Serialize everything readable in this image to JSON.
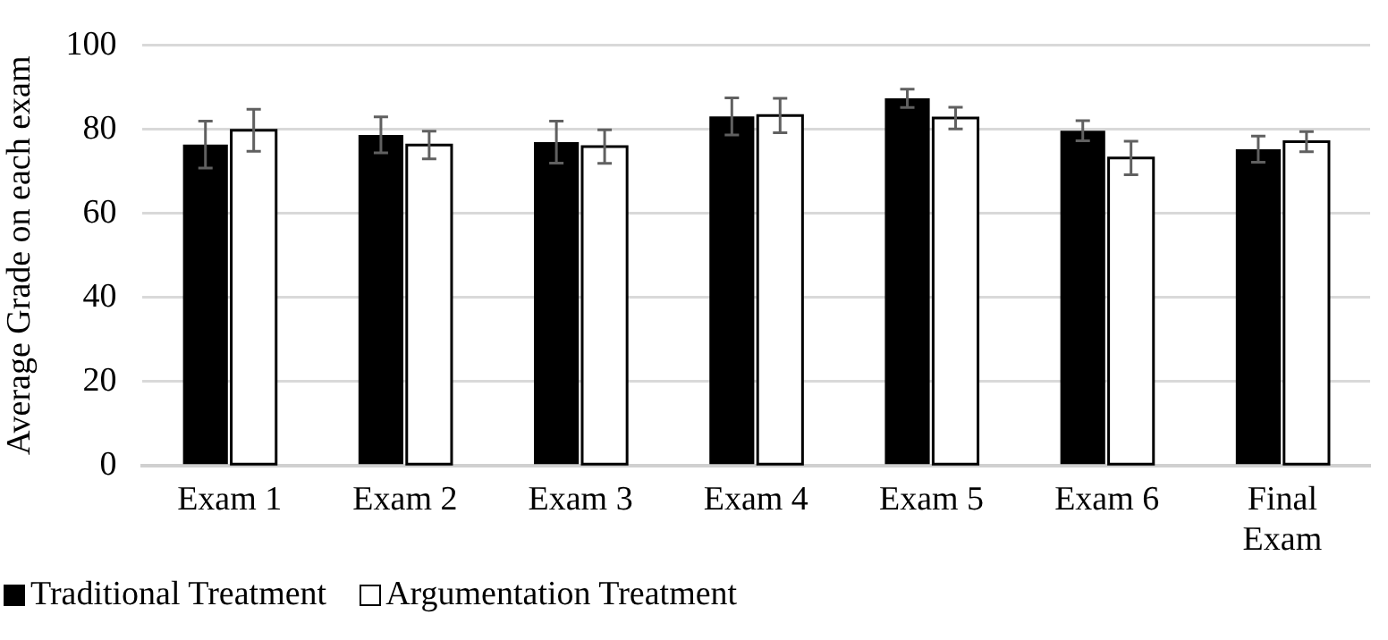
{
  "chart_data": {
    "type": "bar",
    "ylabel": "Average Grade on each exam",
    "categories": [
      "Exam 1",
      "Exam 2",
      "Exam 3",
      "Exam 4",
      "Exam 5",
      "Exam 6",
      "Final Exam"
    ],
    "series": [
      {
        "name": "Traditional Treatment",
        "color": "#000000",
        "values": [
          76.4,
          78.7,
          77,
          83.1,
          87.4,
          79.7,
          75.3
        ],
        "errors": [
          5.6,
          4.3,
          5,
          4.4,
          2.2,
          2.4,
          3.1
        ]
      },
      {
        "name": "Argumentation Treatment",
        "color": "#ffffff",
        "values": [
          79.8,
          76.3,
          75.9,
          83.3,
          82.7,
          73.2,
          77.1
        ],
        "errors": [
          5,
          3.3,
          4,
          4.1,
          2.6,
          4,
          2.4
        ]
      }
    ],
    "ylim": [
      0,
      100
    ],
    "yticks": [
      0,
      20,
      40,
      60,
      80,
      100
    ],
    "grid": "y",
    "legend": "bottom"
  }
}
